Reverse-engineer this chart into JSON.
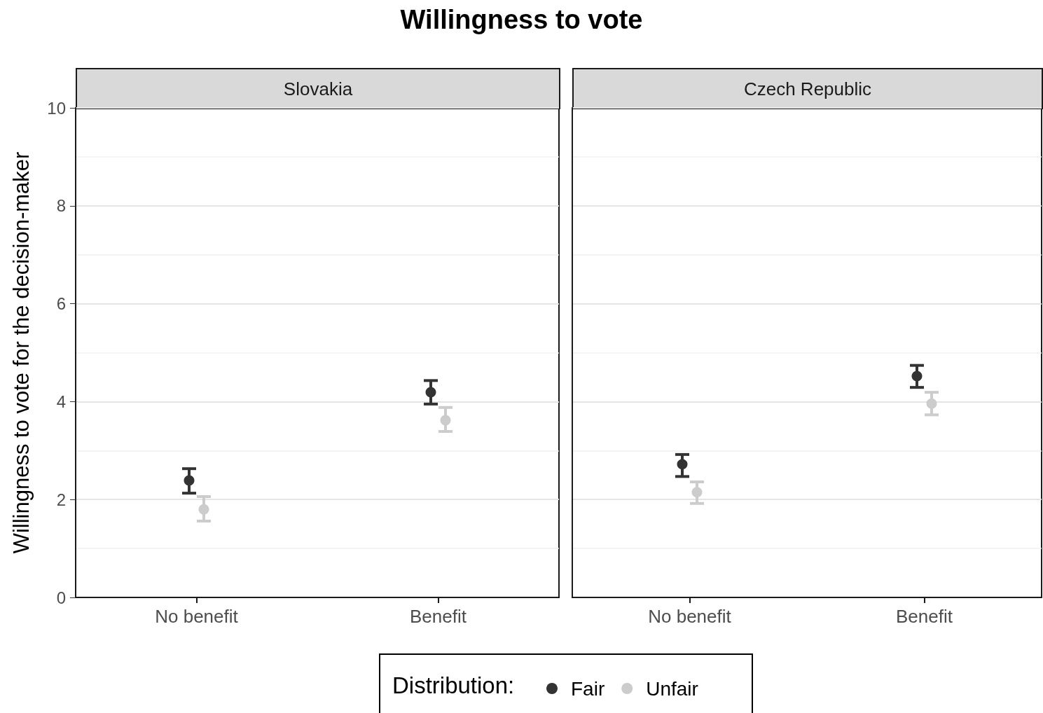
{
  "chart_data": [
    {
      "type": "scatter",
      "title": "Willingness to vote",
      "subtitle": "Slovakia",
      "ylabel": "Willingness to vote for the decision-maker",
      "legend_title": "Distribution:",
      "legend": "bottom",
      "grid": "y",
      "marker": "circle",
      "categories": [
        "No benefit",
        "Benefit"
      ],
      "ylim": [
        0,
        10
      ],
      "yticks": [
        0,
        2,
        4,
        6,
        8,
        10
      ],
      "series": [
        {
          "name": "Fair",
          "color": "#333333",
          "values": [
            2.39,
            4.19
          ],
          "errors": [
            [
              2.13,
              2.63
            ],
            [
              3.95,
              4.43
            ]
          ]
        },
        {
          "name": "Unfair",
          "color": "#cccccc",
          "values": [
            1.8,
            3.62
          ],
          "errors": [
            [
              1.56,
              2.06
            ],
            [
              3.39,
              3.88
            ]
          ]
        }
      ]
    },
    {
      "type": "scatter",
      "subtitle": "Czech Republic",
      "grid": "y",
      "marker": "circle",
      "tick_labels": "x",
      "categories": [
        "No benefit",
        "Benefit"
      ],
      "ylim": [
        0,
        10
      ],
      "yticks": [
        0,
        2,
        4,
        6,
        8,
        10
      ],
      "series": [
        {
          "color": "#333333",
          "values": [
            2.72,
            4.52
          ],
          "errors": [
            [
              2.47,
              2.92
            ],
            [
              4.29,
              4.74
            ]
          ]
        },
        {
          "color": "#cccccc",
          "values": [
            2.15,
            3.96
          ],
          "errors": [
            [
              1.92,
              2.36
            ],
            [
              3.73,
              4.19
            ]
          ]
        }
      ]
    }
  ]
}
